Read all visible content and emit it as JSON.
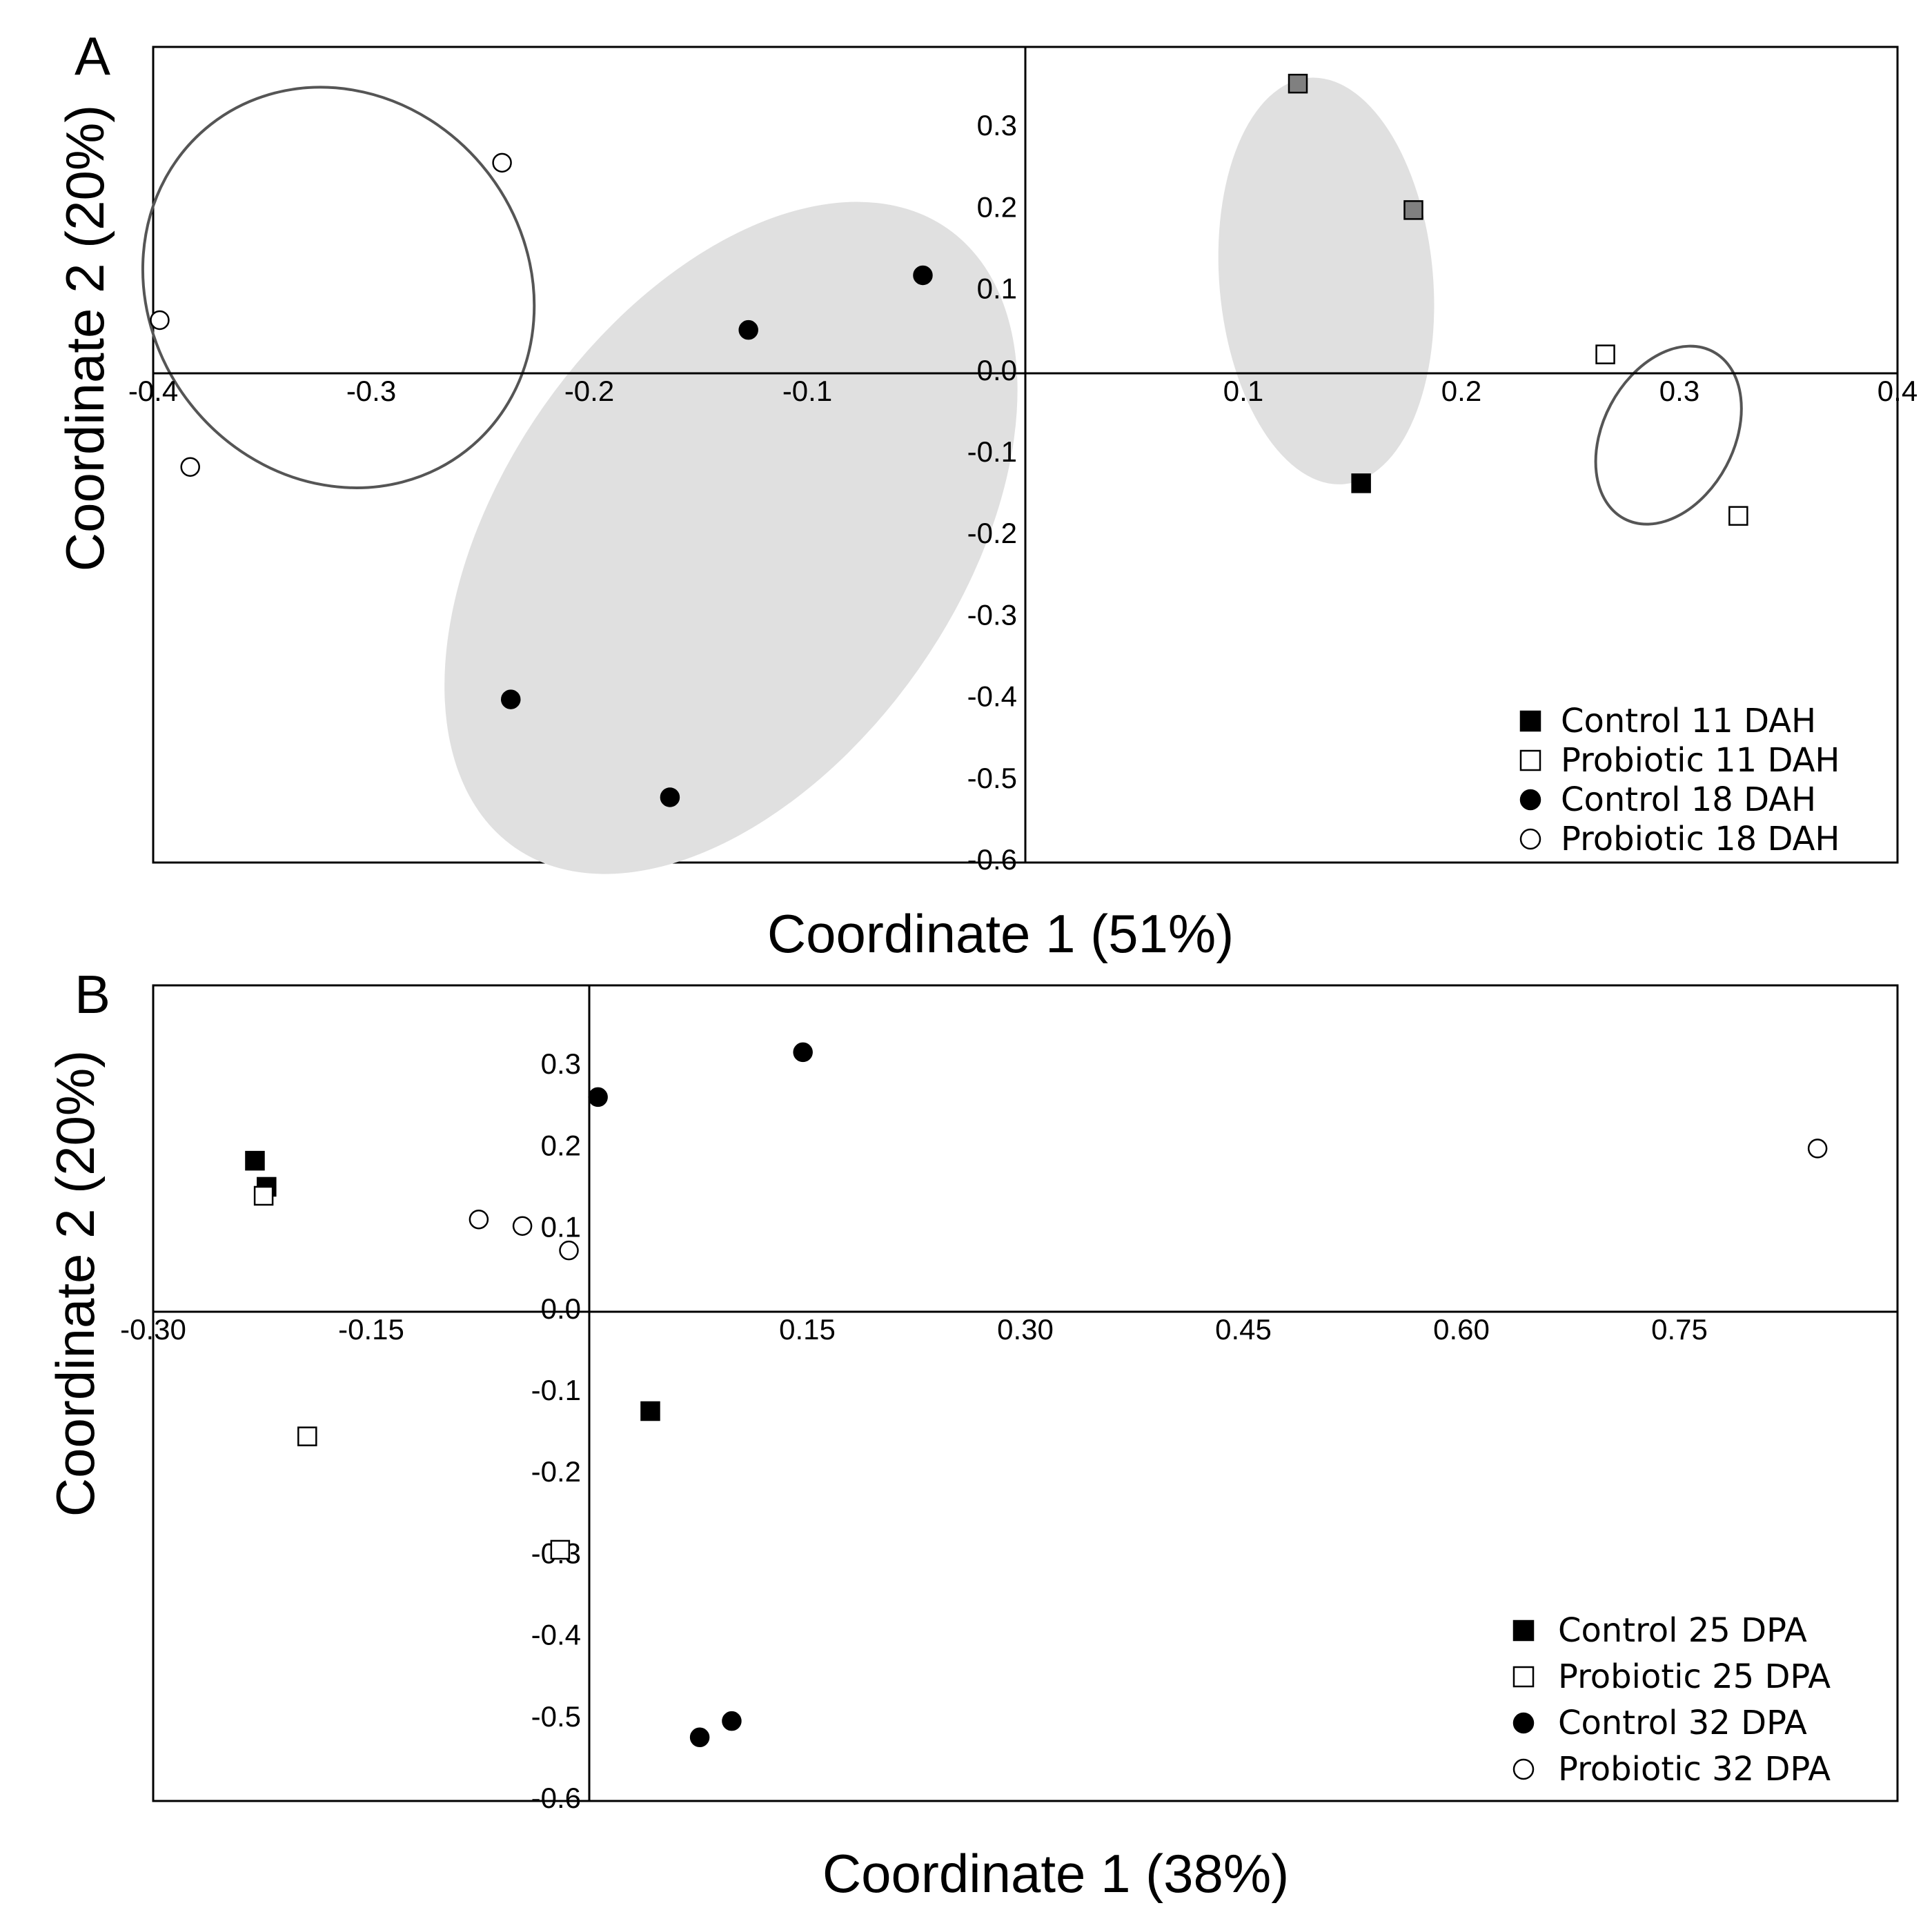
{
  "colors": {
    "black": "#000000",
    "gray_marker": "#808080",
    "ellipse_fill": "#e0e0e0",
    "ellipse_stroke": "#555555",
    "frame": "#000000"
  },
  "chart_data": [
    {
      "type": "scatter",
      "panel_label": "A",
      "xlabel": "Coordinate 1 (51%)",
      "ylabel": "Coordinate 2 (20%)",
      "xlim": [
        -0.4,
        0.4
      ],
      "ylim": [
        -0.6,
        0.4
      ],
      "xticks": [
        -0.4,
        -0.3,
        -0.2,
        -0.1,
        0.1,
        0.2,
        0.3,
        0.4
      ],
      "xtick_labels": [
        "-0.4",
        "-0.3",
        "-0.2",
        "-0.1",
        "0.1",
        "0.2",
        "0.3",
        "0.4"
      ],
      "yticks": [
        0.3,
        0.2,
        0.1,
        0.0,
        -0.1,
        -0.2,
        -0.3,
        -0.4,
        -0.5,
        -0.6
      ],
      "ytick_labels": [
        "0.3",
        "0.2",
        "0.1",
        "0.0",
        "-0.1",
        "-0.2",
        "-0.3",
        "-0.4",
        "-0.5",
        "-0.6"
      ],
      "legend_position": "bottom-right",
      "series": [
        {
          "name": "Control 11 DAH",
          "marker": "square",
          "filled": true,
          "points": [
            [
              0.125,
              0.355
            ],
            [
              0.178,
              0.2
            ],
            [
              0.154,
              -0.135
            ]
          ],
          "point_colors": [
            "gray",
            "gray",
            "black"
          ]
        },
        {
          "name": "Probiotic 11 DAH",
          "marker": "square",
          "filled": false,
          "points": [
            [
              0.266,
              0.023
            ],
            [
              0.327,
              -0.175
            ]
          ]
        },
        {
          "name": "Control 18 DAH",
          "marker": "circle",
          "filled": true,
          "points": [
            [
              -0.047,
              0.12
            ],
            [
              -0.127,
              0.053
            ],
            [
              -0.236,
              -0.4
            ],
            [
              -0.163,
              -0.52
            ]
          ]
        },
        {
          "name": "Probiotic 18 DAH",
          "marker": "circle",
          "filled": false,
          "points": [
            [
              -0.24,
              0.258
            ],
            [
              -0.397,
              0.065
            ],
            [
              -0.383,
              -0.115
            ]
          ]
        }
      ],
      "ellipses": [
        {
          "group": "Probiotic 18 DAH",
          "style": "outline",
          "cx": -0.315,
          "cy": 0.105,
          "rx": 0.095,
          "ry": 0.231,
          "angle_deg": 52
        },
        {
          "group": "Control 18 DAH",
          "style": "filled",
          "cx": -0.135,
          "cy": -0.202,
          "rx": 0.105,
          "ry": 0.463,
          "angle_deg": 35
        },
        {
          "group": "Control 11 DAH",
          "style": "filled",
          "cx": 0.138,
          "cy": 0.113,
          "rx": 0.049,
          "ry": 0.25,
          "angle_deg": -5
        },
        {
          "group": "Probiotic 11 DAH",
          "style": "outline",
          "cx": 0.295,
          "cy": -0.076,
          "rx": 0.03,
          "ry": 0.116,
          "angle_deg": 28
        }
      ]
    },
    {
      "type": "scatter",
      "panel_label": "B",
      "xlabel": "Coordinate 1 (38%)",
      "ylabel": "Coordinate 2 (20%)",
      "xlim": [
        -0.3,
        0.9
      ],
      "ylim": [
        -0.6,
        0.4
      ],
      "xticks": [
        -0.3,
        -0.15,
        0.15,
        0.3,
        0.45,
        0.6,
        0.75
      ],
      "xtick_labels": [
        "-0.30",
        "-0.15",
        "0.15",
        "0.30",
        "0.45",
        "0.60",
        "0.75"
      ],
      "yticks": [
        0.3,
        0.2,
        0.1,
        0.0,
        -0.1,
        -0.2,
        -0.3,
        -0.4,
        -0.5,
        -0.6
      ],
      "ytick_labels": [
        "0.3",
        "0.2",
        "0.1",
        "0.0",
        "-0.1",
        "-0.2",
        "-0.3",
        "-0.4",
        "-0.5",
        "-0.6"
      ],
      "legend_position": "bottom-right",
      "series": [
        {
          "name": "Control 25 DPA",
          "marker": "square",
          "filled": true,
          "points": [
            [
              -0.23,
              0.185
            ],
            [
              -0.222,
              0.153
            ],
            [
              0.042,
              -0.122
            ]
          ]
        },
        {
          "name": "Probiotic 25 DPA",
          "marker": "square",
          "filled": false,
          "points": [
            [
              -0.224,
              0.142
            ],
            [
              -0.194,
              -0.153
            ],
            [
              -0.02,
              -0.292
            ]
          ]
        },
        {
          "name": "Control 32 DPA",
          "marker": "circle",
          "filled": true,
          "points": [
            [
              0.006,
              0.263
            ],
            [
              0.147,
              0.318
            ],
            [
              0.076,
              -0.522
            ],
            [
              0.098,
              -0.502
            ]
          ]
        },
        {
          "name": "Probiotic 32 DPA",
          "marker": "circle",
          "filled": false,
          "points": [
            [
              -0.076,
              0.113
            ],
            [
              -0.046,
              0.105
            ],
            [
              -0.014,
              0.075
            ],
            [
              0.845,
              0.2
            ]
          ]
        }
      ]
    }
  ]
}
